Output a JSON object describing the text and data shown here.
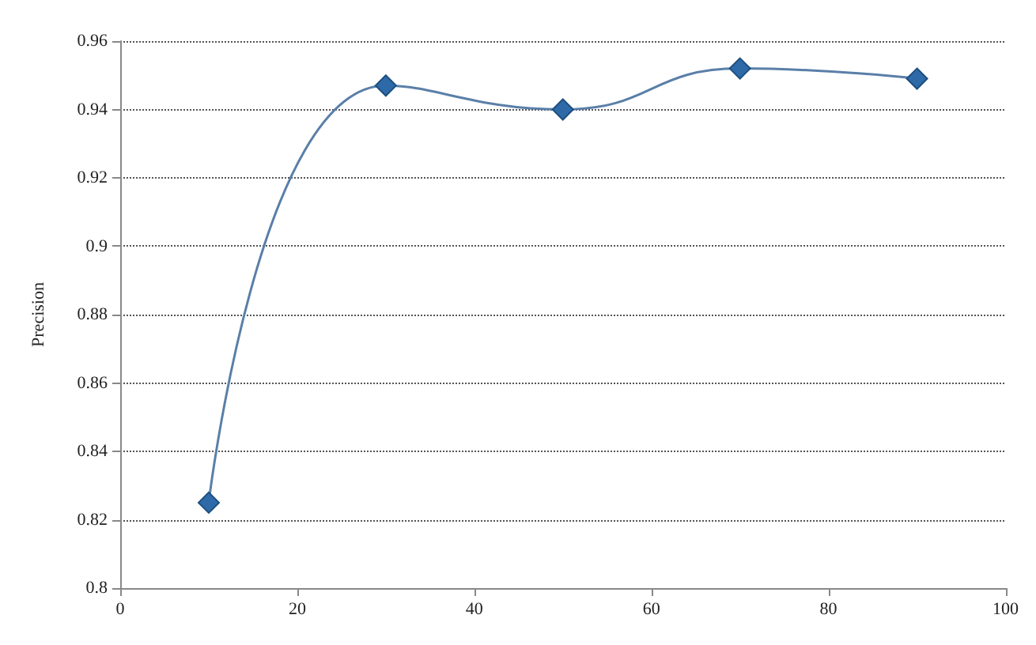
{
  "chart_data": {
    "type": "line",
    "ylabel": "Precision",
    "x": [
      10,
      30,
      50,
      70,
      90
    ],
    "series": [
      {
        "color": "#2f6aa8",
        "values": [
          0.825,
          0.947,
          0.94,
          0.952,
          0.949
        ]
      }
    ],
    "xlim": [
      0,
      100
    ],
    "xticks": [
      0,
      20,
      40,
      60,
      80,
      100
    ],
    "ylim": [
      0.8,
      0.96
    ],
    "yticks": [
      0.8,
      0.82,
      0.84,
      0.86,
      0.88,
      0.9,
      0.92,
      0.94,
      0.96
    ],
    "grid": "y",
    "marker": "diamond",
    "line_style": "solid"
  }
}
